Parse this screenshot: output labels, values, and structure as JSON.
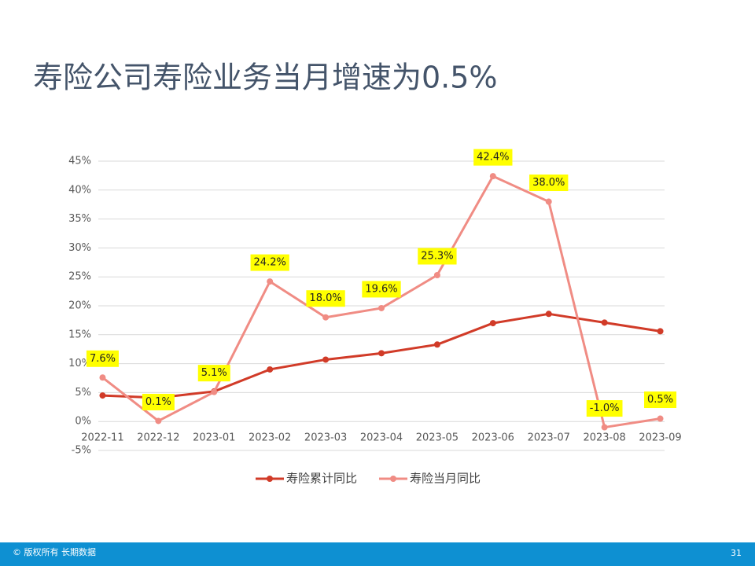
{
  "chart_data": {
    "type": "line",
    "title": "寿险公司寿险业务当月增速为0.5%",
    "categories": [
      "2022-11",
      "2022-12",
      "2023-01",
      "2023-02",
      "2023-03",
      "2023-04",
      "2023-05",
      "2023-06",
      "2023-07",
      "2023-08",
      "2023-09"
    ],
    "series": [
      {
        "name": "寿险累计同比",
        "color": "#d13b28",
        "values": [
          4.5,
          4.1,
          5.2,
          9.0,
          10.7,
          11.8,
          13.3,
          17.0,
          18.6,
          17.1,
          15.6
        ]
      },
      {
        "name": "寿险当月同比",
        "color": "#f08c84",
        "values": [
          7.6,
          0.1,
          5.1,
          24.2,
          18.0,
          19.6,
          25.3,
          42.4,
          38.0,
          -1.0,
          0.5
        ],
        "value_labels": [
          "7.6%",
          "0.1%",
          "5.1%",
          "24.2%",
          "18.0%",
          "19.6%",
          "25.3%",
          "42.4%",
          "38.0%",
          "-1.0%",
          "0.5%"
        ],
        "label_background": "#ffff00"
      }
    ],
    "ylim": [
      -5,
      45
    ],
    "yticks": [
      {
        "value": -5,
        "label": "-5%"
      },
      {
        "value": 0,
        "label": "0%"
      },
      {
        "value": 5,
        "label": "5%"
      },
      {
        "value": 10,
        "label": "10%"
      },
      {
        "value": 15,
        "label": "15%"
      },
      {
        "value": 20,
        "label": "20%"
      },
      {
        "value": 25,
        "label": "25%"
      },
      {
        "value": 30,
        "label": "30%"
      },
      {
        "value": 35,
        "label": "35%"
      },
      {
        "value": 40,
        "label": "40%"
      },
      {
        "value": 45,
        "label": "45%"
      }
    ],
    "grid": true,
    "legend": "bottom"
  },
  "footer": {
    "copyright": "© 版权所有 长期数据",
    "page": "31"
  }
}
